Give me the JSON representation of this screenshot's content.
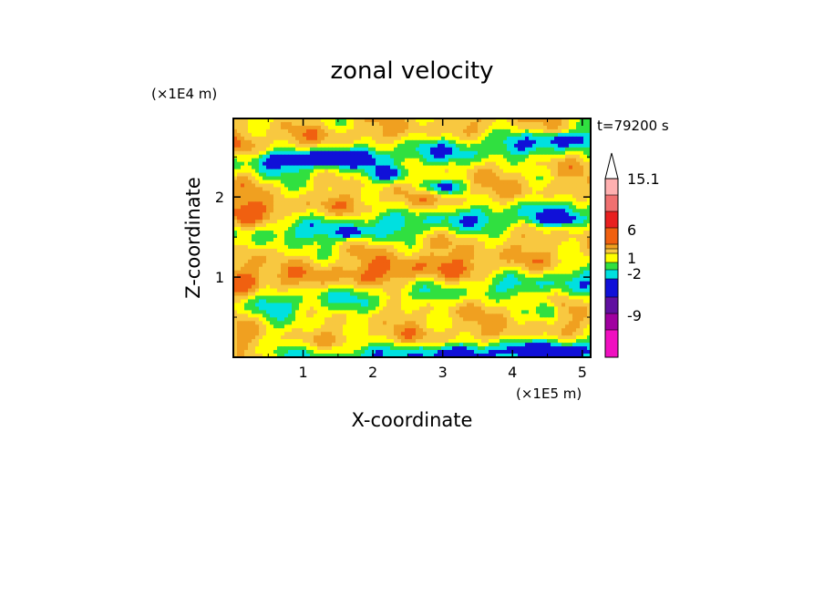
{
  "chart_data": {
    "type": "heatmap",
    "title": "zonal velocity",
    "xlabel": "X-coordinate",
    "ylabel": "Z-coordinate",
    "x_scale_label": "(×1E5 m)",
    "y_scale_label": "(×1E4 m)",
    "time_label": "t=79200 s",
    "xlim": [
      0,
      5.12
    ],
    "ylim": [
      0,
      2.98
    ],
    "x_ticks": [
      "1",
      "2",
      "3",
      "4",
      "5"
    ],
    "y_ticks": [
      "1",
      "2"
    ],
    "colorbar": {
      "ticks": [
        "15.1",
        "6",
        "1",
        "-2",
        "-9"
      ],
      "colors": [
        "#ffb0b0",
        "#f07070",
        "#e82020",
        "#f06010",
        "#f0a020",
        "#f8c840",
        "#ffff00",
        "#30e040",
        "#00e0e0",
        "#1010d8",
        "#6010a0",
        "#a000a0",
        "#f010c0"
      ],
      "extend": "max"
    },
    "field_level_colors": [
      "#1010d8",
      "#00e0e0",
      "#30e040",
      "#ffff00",
      "#f8c840",
      "#f0a020",
      "#f06010"
    ],
    "grid": false
  }
}
